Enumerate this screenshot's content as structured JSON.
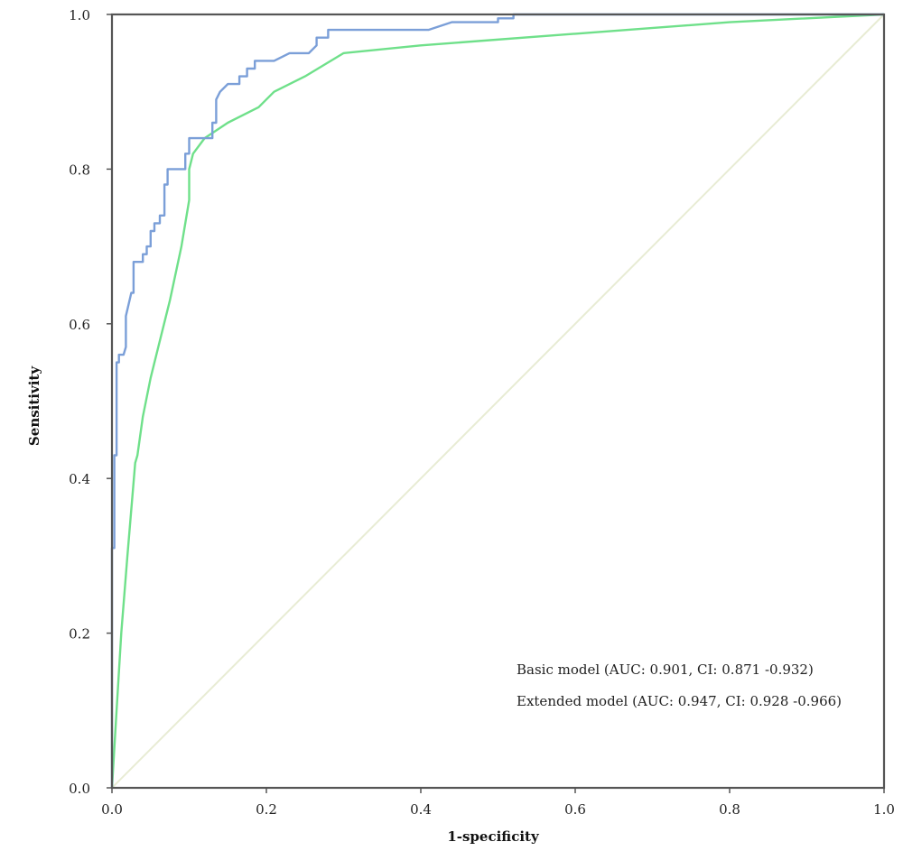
{
  "chart_data": {
    "type": "line",
    "title": "",
    "xlabel": "1-specificity",
    "ylabel": "Sensitivity",
    "xlim": [
      0,
      1
    ],
    "ylim": [
      0,
      1
    ],
    "grid": false,
    "legend_position": "bottom-right",
    "x_ticks": [
      "0.0",
      "0.2",
      "0.4",
      "0.6",
      "0.8",
      "1.0"
    ],
    "y_ticks": [
      "0.0",
      "0.2",
      "0.4",
      "0.6",
      "0.8",
      "1.0"
    ],
    "annotations": [
      "Basic model (AUC: 0.901, CI: 0.871 -0.932)",
      "Extended model (AUC: 0.947, CI: 0.928 -0.966)"
    ],
    "series": [
      {
        "color": "#7b9fd8",
        "x": [
          0.0,
          0.0,
          0.003,
          0.003,
          0.006,
          0.006,
          0.009,
          0.009,
          0.015,
          0.018,
          0.018,
          0.025,
          0.028,
          0.028,
          0.04,
          0.04,
          0.045,
          0.045,
          0.05,
          0.05,
          0.055,
          0.055,
          0.062,
          0.062,
          0.068,
          0.068,
          0.072,
          0.072,
          0.095,
          0.095,
          0.1,
          0.1,
          0.11,
          0.13,
          0.13,
          0.135,
          0.135,
          0.14,
          0.15,
          0.165,
          0.165,
          0.175,
          0.175,
          0.185,
          0.185,
          0.21,
          0.21,
          0.23,
          0.23,
          0.255,
          0.265,
          0.265,
          0.28,
          0.28,
          0.41,
          0.44,
          0.44,
          0.5,
          0.5,
          0.52,
          0.52,
          1.0
        ],
        "y": [
          0.0,
          0.31,
          0.31,
          0.43,
          0.43,
          0.55,
          0.55,
          0.56,
          0.56,
          0.57,
          0.61,
          0.64,
          0.64,
          0.68,
          0.68,
          0.69,
          0.69,
          0.7,
          0.7,
          0.72,
          0.72,
          0.73,
          0.73,
          0.74,
          0.74,
          0.78,
          0.78,
          0.8,
          0.8,
          0.82,
          0.82,
          0.84,
          0.84,
          0.84,
          0.86,
          0.86,
          0.89,
          0.9,
          0.91,
          0.91,
          0.92,
          0.92,
          0.93,
          0.93,
          0.94,
          0.94,
          0.94,
          0.95,
          0.95,
          0.95,
          0.96,
          0.97,
          0.97,
          0.98,
          0.98,
          0.99,
          0.99,
          0.99,
          0.995,
          0.995,
          1.0,
          1.0
        ]
      },
      {
        "color": "#6fe08a",
        "x": [
          0.0,
          0.006,
          0.012,
          0.02,
          0.03,
          0.033,
          0.04,
          0.05,
          0.06,
          0.075,
          0.09,
          0.1,
          0.1,
          0.105,
          0.12,
          0.15,
          0.19,
          0.21,
          0.25,
          0.3,
          0.4,
          0.6,
          0.8,
          1.0
        ],
        "y": [
          0.0,
          0.1,
          0.2,
          0.3,
          0.42,
          0.43,
          0.48,
          0.53,
          0.57,
          0.63,
          0.7,
          0.76,
          0.8,
          0.82,
          0.84,
          0.86,
          0.88,
          0.9,
          0.92,
          0.95,
          0.96,
          0.975,
          0.99,
          1.0
        ]
      },
      {
        "color": "#e8ecd4",
        "x": [
          0,
          1
        ],
        "y": [
          0,
          1
        ]
      }
    ]
  }
}
